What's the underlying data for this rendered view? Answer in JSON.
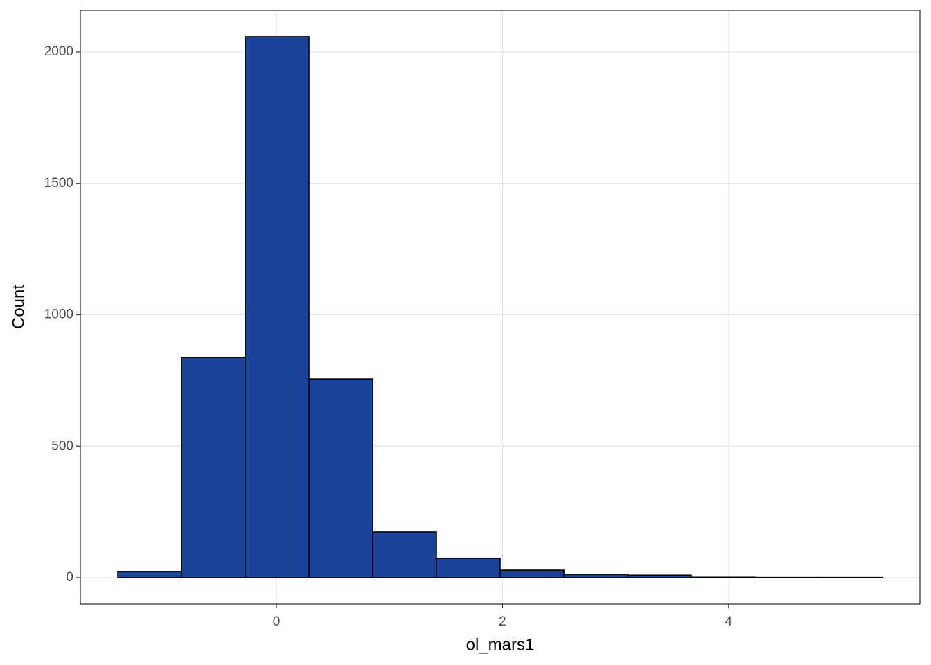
{
  "chart_data": {
    "type": "histogram",
    "x_label": "ol_mars1",
    "y_label": "Count",
    "bins": [
      -1.403,
      -0.839,
      -0.276,
      0.288,
      0.852,
      1.415,
      1.979,
      2.543,
      3.107,
      3.67,
      4.234,
      4.798,
      5.361
    ],
    "values": [
      24,
      838,
      2058,
      756,
      174,
      74,
      29,
      13,
      10,
      2,
      1,
      1
    ],
    "color": "#1a4499",
    "edge_color": "#000000",
    "xlim": [
      -1.734,
      5.692
    ],
    "ylim": [
      -100,
      2158
    ],
    "xticks": [
      0,
      2,
      4
    ],
    "yticks": [
      0,
      500,
      1000,
      1500,
      2000
    ],
    "grid": true
  }
}
